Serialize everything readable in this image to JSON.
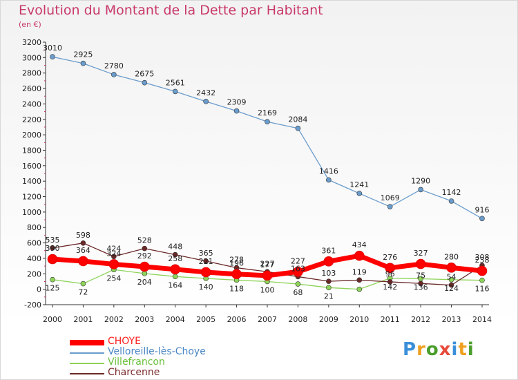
{
  "header": {
    "title": "Evolution du Montant de la Dette par Habitant",
    "unit": "(en €)"
  },
  "logo": {
    "text": "Proxiti",
    "colors": [
      "#3a8fd9",
      "#f0a020",
      "#4a9d2a",
      "#e84a3a",
      "#3a8fd9",
      "#f0a020",
      "#4a9d2a"
    ]
  },
  "chart_data": {
    "type": "line",
    "x": [
      "2000",
      "2001",
      "2002",
      "2003",
      "2004",
      "2005",
      "2006",
      "2007",
      "2008",
      "2009",
      "2010",
      "2011",
      "2012",
      "2013",
      "2014"
    ],
    "ylim": [
      -200,
      3200
    ],
    "yticks": [
      -200,
      0,
      200,
      400,
      600,
      800,
      1000,
      1200,
      1400,
      1600,
      1800,
      2000,
      2200,
      2400,
      2600,
      2800,
      3000,
      3200
    ],
    "grid": false,
    "legend_position": "bottom-left",
    "series": [
      {
        "name": "Velloreille-lès-Choye",
        "color": "#6a9ccc",
        "values": [
          3010,
          2925,
          2780,
          2675,
          2561,
          2432,
          2309,
          2169,
          2084,
          1416,
          1241,
          1069,
          1290,
          1142,
          916
        ]
      },
      {
        "name": "Villefrancon",
        "color": "#8ed35a",
        "values": [
          125,
          72,
          254,
          204,
          164,
          140,
          118,
          100,
          68,
          21,
          0,
          142,
          136,
          124,
          116
        ]
      },
      {
        "name": "Charcenne",
        "color": "#6b2828",
        "values": [
          535,
          598,
          424,
          528,
          448,
          365,
          278,
          227,
          163,
          103,
          119,
          96,
          75,
          54,
          308
        ]
      },
      {
        "name": "CHOYE",
        "color": "#ff0000",
        "values": [
          390,
          364,
          324,
          292,
          258,
          221,
          196,
          177,
          227,
          361,
          434,
          276,
          327,
          280,
          238
        ]
      }
    ],
    "data_labels": {
      "Velloreille-lès-Choye": [
        "3010",
        "2925",
        "2780",
        "2675",
        "2561",
        "2432",
        "2309",
        "2169",
        "2084",
        "1416",
        "1241",
        "1069",
        "1290",
        "1142",
        "916"
      ],
      "Villefrancon": [
        "125",
        "72",
        "254",
        "204",
        "164",
        "140",
        "118",
        "100",
        "68",
        "21",
        "",
        "142",
        "136",
        "124",
        "116"
      ],
      "Charcenne": [
        "535",
        "598",
        "424",
        "528",
        "448",
        "365",
        "278",
        "227",
        "163",
        "103",
        "119",
        "96",
        "75",
        "54",
        "308"
      ],
      "CHOYE": [
        "390",
        "364",
        "324",
        "292",
        "258",
        "221",
        "196",
        "177",
        "227",
        "361",
        "434",
        "276",
        "327",
        "280",
        "238"
      ]
    }
  }
}
